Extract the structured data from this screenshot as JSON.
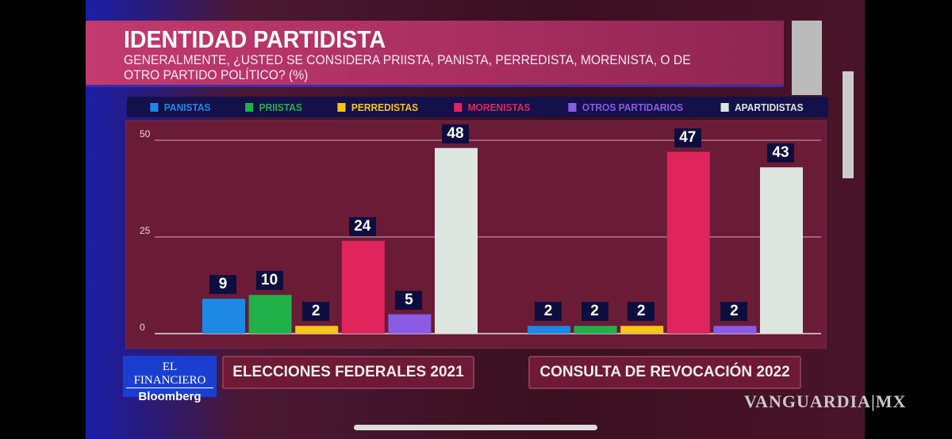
{
  "title": "IDENTIDAD PARTIDISTA",
  "subtitle": "GENERALMENTE, ¿USTED SE CONSIDERA PRIISTA, PANISTA, PERREDISTA, MORENISTA, O DE OTRO PARTIDO POLÍTICO? (%)",
  "logo": {
    "line1": "EL FINANCIERO",
    "line2": "Bloomberg"
  },
  "watermark": "VANGUARDIA|MX",
  "chart_data": {
    "type": "bar",
    "title": "IDENTIDAD PARTIDISTA",
    "categories": [
      "ELECCIONES FEDERALES 2021",
      "CONSULTA DE REVOCACIÓN 2022"
    ],
    "series": [
      {
        "name": "PANISTAS",
        "color": "#1e88e5",
        "values": [
          9,
          2
        ]
      },
      {
        "name": "PRIISTAS",
        "color": "#22b04a",
        "values": [
          10,
          2
        ]
      },
      {
        "name": "PERREDISTAS",
        "color": "#f5c518",
        "values": [
          2,
          2
        ]
      },
      {
        "name": "MORENISTAS",
        "color": "#e0245e",
        "values": [
          24,
          47
        ]
      },
      {
        "name": "OTROS PARTIDARIOS",
        "color": "#8a5ce6",
        "values": [
          5,
          2
        ]
      },
      {
        "name": "APARTIDISTAS",
        "color": "#dde5df",
        "values": [
          48,
          43
        ]
      }
    ],
    "yticks": [
      "0",
      "25",
      "50"
    ],
    "ylim": [
      0,
      55
    ],
    "grid": true,
    "legend": "top"
  }
}
